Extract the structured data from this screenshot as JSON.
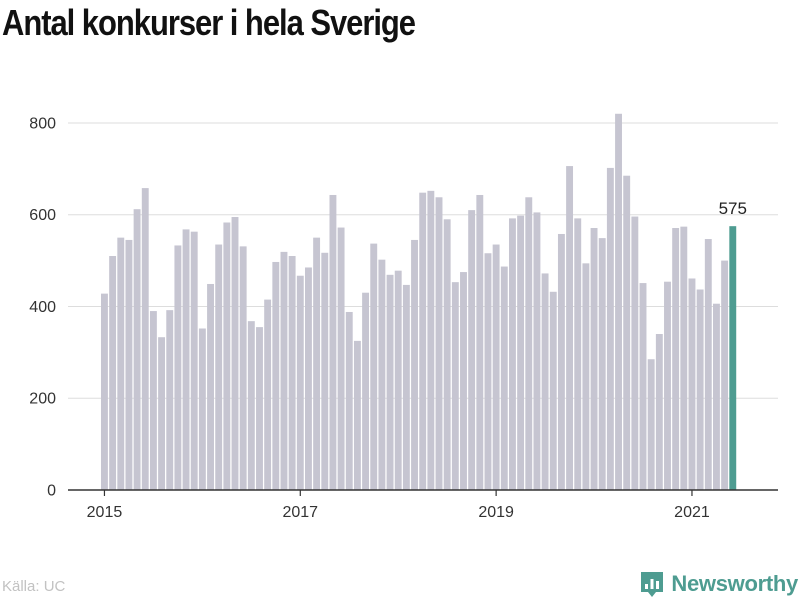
{
  "title": "Antal konkurser i hela Sverige",
  "source": "Källa: UC",
  "brand": {
    "name": "Newsworthy"
  },
  "colors": {
    "bar": "#c6c5d1",
    "highlight": "#4e9c91",
    "grid": "#dddddd",
    "text": "#333333",
    "axis": "#333333"
  },
  "chart_data": {
    "type": "bar",
    "title": "Antal konkurser i hela Sverige",
    "xlabel": "",
    "ylabel": "",
    "ylim": [
      0,
      850
    ],
    "yticks": [
      0,
      200,
      400,
      600,
      800
    ],
    "xticks": [
      "2015",
      "2017",
      "2019",
      "2021"
    ],
    "grid": true,
    "start": "2015-01",
    "frequency": "monthly",
    "categories": [
      "2015-01",
      "2015-02",
      "2015-03",
      "2015-04",
      "2015-05",
      "2015-06",
      "2015-07",
      "2015-08",
      "2015-09",
      "2015-10",
      "2015-11",
      "2015-12",
      "2016-01",
      "2016-02",
      "2016-03",
      "2016-04",
      "2016-05",
      "2016-06",
      "2016-07",
      "2016-08",
      "2016-09",
      "2016-10",
      "2016-11",
      "2016-12",
      "2017-01",
      "2017-02",
      "2017-03",
      "2017-04",
      "2017-05",
      "2017-06",
      "2017-07",
      "2017-08",
      "2017-09",
      "2017-10",
      "2017-11",
      "2017-12",
      "2018-01",
      "2018-02",
      "2018-03",
      "2018-04",
      "2018-05",
      "2018-06",
      "2018-07",
      "2018-08",
      "2018-09",
      "2018-10",
      "2018-11",
      "2018-12",
      "2019-01",
      "2019-02",
      "2019-03",
      "2019-04",
      "2019-05",
      "2019-06",
      "2019-07",
      "2019-08",
      "2019-09",
      "2019-10",
      "2019-11",
      "2019-12",
      "2020-01",
      "2020-02",
      "2020-03",
      "2020-04",
      "2020-05",
      "2020-06",
      "2020-07",
      "2020-08",
      "2020-09",
      "2020-10",
      "2020-11",
      "2020-12",
      "2021-01",
      "2021-02",
      "2021-03",
      "2021-04",
      "2021-05",
      "2021-06"
    ],
    "values": [
      428,
      510,
      550,
      545,
      612,
      658,
      390,
      333,
      392,
      533,
      568,
      563,
      352,
      449,
      535,
      583,
      595,
      531,
      368,
      355,
      415,
      497,
      519,
      510,
      467,
      485,
      550,
      517,
      643,
      572,
      388,
      325,
      430,
      537,
      502,
      469,
      478,
      447,
      545,
      648,
      652,
      638,
      590,
      453,
      475,
      610,
      643,
      516,
      535,
      487,
      592,
      598,
      638,
      605,
      472,
      432,
      558,
      706,
      592,
      494,
      571,
      549,
      702,
      820,
      685,
      596,
      451,
      285,
      340,
      454,
      571,
      574,
      461,
      437,
      547,
      406,
      500,
      575
    ],
    "highlight": {
      "category": "2021-06",
      "value": 575,
      "label": "575"
    }
  }
}
